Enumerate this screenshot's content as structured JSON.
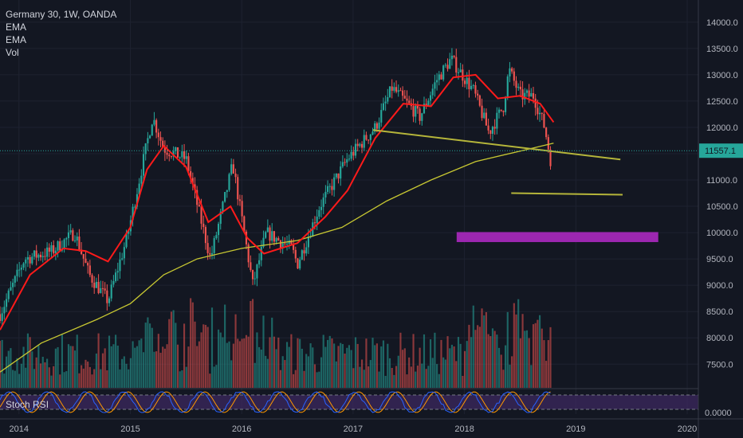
{
  "legend": {
    "symbol": "Germany 30, 1W, OANDA",
    "ind1": "EMA",
    "ind2": "EMA",
    "ind3": "Vol"
  },
  "rsi_label": "Stoch RSI",
  "colors": {
    "background": "#131722",
    "up": "#26a69a",
    "down": "#ef5350",
    "ema_fast": "#ff1a1a",
    "ema_slow": "#c8c832",
    "trendline": "#b5b53a",
    "zone": "#9c27b0",
    "rsi_k": "#2962ff",
    "rsi_d": "#ff9800",
    "rsi_band": "#3e2a63"
  },
  "chart_data": {
    "type": "candlestick",
    "xlabel": "",
    "ylabel": "",
    "x_ticks": [
      "2014",
      "2015",
      "2016",
      "2017",
      "2018",
      "2019",
      "2020"
    ],
    "y_ticks": [
      "7500.0",
      "8000.0",
      "8500.0",
      "9000.0",
      "9500.0",
      "10000.0",
      "10500.0",
      "11000.0",
      "11500.0",
      "12000.0",
      "12500.0",
      "13000.0",
      "13500.0",
      "14000.0"
    ],
    "y_range": [
      7050,
      14300
    ],
    "x_range": [
      2013.83,
      2020.1
    ],
    "last_price": "11557.1",
    "rsi_ticks": [
      "0.0000"
    ],
    "key_points": [
      {
        "t": 2013.83,
        "p": 8450
      },
      {
        "t": 2014.05,
        "p": 9500
      },
      {
        "t": 2014.3,
        "p": 9650
      },
      {
        "t": 2014.5,
        "p": 10000
      },
      {
        "t": 2014.63,
        "p": 9200
      },
      {
        "t": 2014.8,
        "p": 8700
      },
      {
        "t": 2014.97,
        "p": 9900
      },
      {
        "t": 2015.2,
        "p": 12200
      },
      {
        "t": 2015.3,
        "p": 11600
      },
      {
        "t": 2015.5,
        "p": 11400
      },
      {
        "t": 2015.72,
        "p": 9500
      },
      {
        "t": 2015.92,
        "p": 11300
      },
      {
        "t": 2016.1,
        "p": 9000
      },
      {
        "t": 2016.22,
        "p": 10000
      },
      {
        "t": 2016.45,
        "p": 9700
      },
      {
        "t": 2016.5,
        "p": 9400
      },
      {
        "t": 2016.7,
        "p": 10500
      },
      {
        "t": 2016.95,
        "p": 11400
      },
      {
        "t": 2017.2,
        "p": 12000
      },
      {
        "t": 2017.35,
        "p": 12750
      },
      {
        "t": 2017.6,
        "p": 12200
      },
      {
        "t": 2017.75,
        "p": 12900
      },
      {
        "t": 2017.88,
        "p": 13300
      },
      {
        "t": 2018.08,
        "p": 12700
      },
      {
        "t": 2018.22,
        "p": 11900
      },
      {
        "t": 2018.35,
        "p": 12400
      },
      {
        "t": 2018.4,
        "p": 13100
      },
      {
        "t": 2018.5,
        "p": 12600
      },
      {
        "t": 2018.62,
        "p": 12600
      },
      {
        "t": 2018.72,
        "p": 12000
      },
      {
        "t": 2018.78,
        "p": 11300
      }
    ],
    "ema_fast": [
      {
        "t": 2013.83,
        "p": 8150
      },
      {
        "t": 2014.1,
        "p": 9200
      },
      {
        "t": 2014.4,
        "p": 9700
      },
      {
        "t": 2014.6,
        "p": 9650
      },
      {
        "t": 2014.8,
        "p": 9450
      },
      {
        "t": 2015.0,
        "p": 10100
      },
      {
        "t": 2015.15,
        "p": 11200
      },
      {
        "t": 2015.3,
        "p": 11650
      },
      {
        "t": 2015.5,
        "p": 11250
      },
      {
        "t": 2015.7,
        "p": 10200
      },
      {
        "t": 2015.9,
        "p": 10500
      },
      {
        "t": 2016.05,
        "p": 9900
      },
      {
        "t": 2016.2,
        "p": 9600
      },
      {
        "t": 2016.5,
        "p": 9800
      },
      {
        "t": 2016.75,
        "p": 10300
      },
      {
        "t": 2016.95,
        "p": 10800
      },
      {
        "t": 2017.2,
        "p": 11800
      },
      {
        "t": 2017.45,
        "p": 12450
      },
      {
        "t": 2017.7,
        "p": 12400
      },
      {
        "t": 2017.9,
        "p": 12950
      },
      {
        "t": 2018.1,
        "p": 13000
      },
      {
        "t": 2018.3,
        "p": 12550
      },
      {
        "t": 2018.5,
        "p": 12600
      },
      {
        "t": 2018.68,
        "p": 12450
      },
      {
        "t": 2018.8,
        "p": 12100
      }
    ],
    "ema_slow": [
      {
        "t": 2013.83,
        "p": 7350
      },
      {
        "t": 2014.2,
        "p": 7900
      },
      {
        "t": 2014.7,
        "p": 8350
      },
      {
        "t": 2015.0,
        "p": 8650
      },
      {
        "t": 2015.3,
        "p": 9200
      },
      {
        "t": 2015.6,
        "p": 9500
      },
      {
        "t": 2016.0,
        "p": 9700
      },
      {
        "t": 2016.5,
        "p": 9850
      },
      {
        "t": 2016.9,
        "p": 10100
      },
      {
        "t": 2017.3,
        "p": 10600
      },
      {
        "t": 2017.7,
        "p": 11000
      },
      {
        "t": 2018.1,
        "p": 11350
      },
      {
        "t": 2018.5,
        "p": 11550
      },
      {
        "t": 2018.8,
        "p": 11700
      }
    ],
    "trendlines": [
      {
        "t1": 2017.18,
        "p1": 11950,
        "t2": 2019.4,
        "p2": 11390
      },
      {
        "t1": 2018.42,
        "p1": 10750,
        "t2": 2019.42,
        "p2": 10720
      }
    ],
    "zone": {
      "t1": 2017.93,
      "t2": 2019.74,
      "p_top": 10010,
      "p_bottom": 9820
    },
    "volume_max": 1.0
  }
}
